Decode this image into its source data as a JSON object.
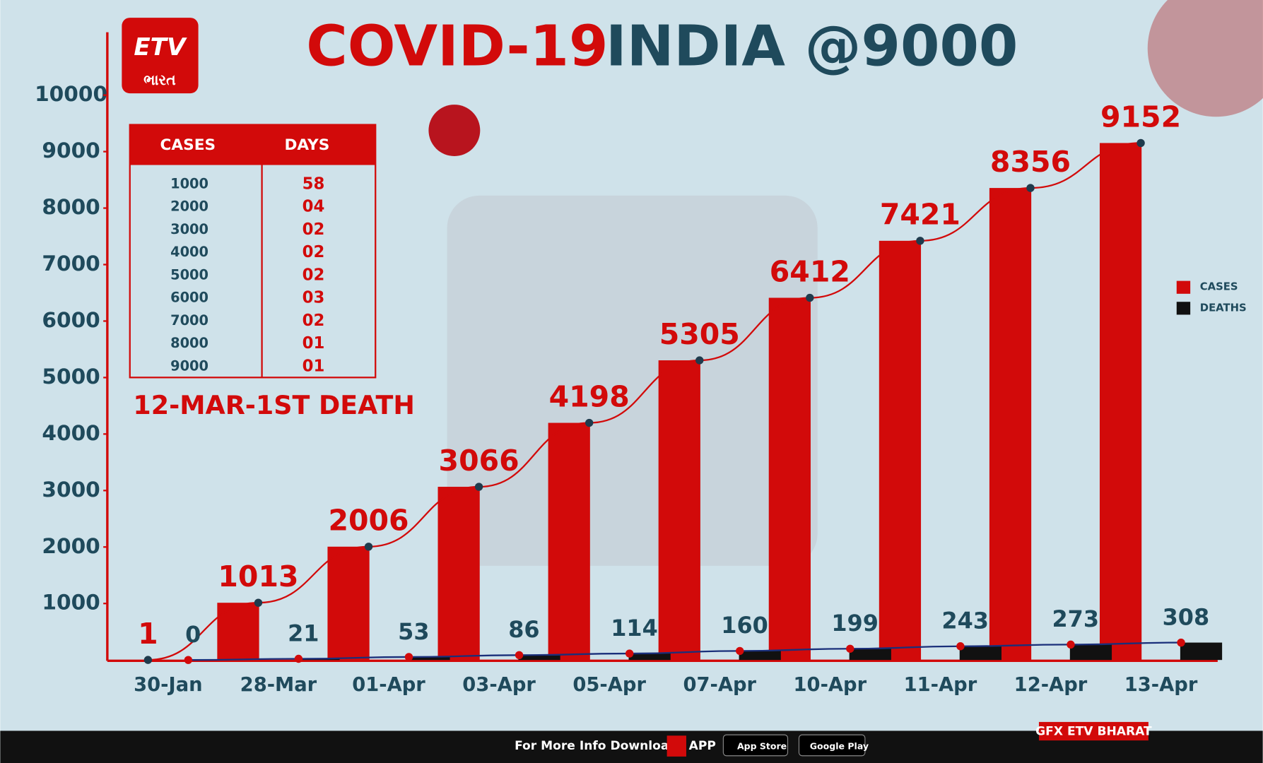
{
  "chart_data": {
    "type": "bar",
    "title": "COVID-19",
    "subtitle": "INDIA @9000",
    "annotation": "12-MAR-1ST DEATH",
    "categories": [
      "30-Jan",
      "28-Mar",
      "01-Apr",
      "03-Apr",
      "05-Apr",
      "07-Apr",
      "10-Apr",
      "11-Apr",
      "12-Apr",
      "13-Apr"
    ],
    "series": [
      {
        "name": "CASES",
        "color": "#d20a0a",
        "values": [
          1,
          1013,
          2006,
          3066,
          4198,
          5305,
          6412,
          7421,
          8356,
          9152
        ]
      },
      {
        "name": "DEATHS",
        "color": "#111111",
        "values": [
          0,
          21,
          53,
          86,
          114,
          160,
          199,
          243,
          273,
          308
        ]
      }
    ],
    "ylim": [
      0,
      11000
    ],
    "yticks": [
      1000,
      2000,
      3000,
      4000,
      5000,
      6000,
      7000,
      8000,
      9000,
      10000
    ],
    "legend": "right"
  },
  "table": {
    "header": [
      "CASES",
      "DAYS"
    ],
    "rows": [
      [
        "1000",
        "58"
      ],
      [
        "2000",
        "04"
      ],
      [
        "3000",
        "02"
      ],
      [
        "4000",
        "02"
      ],
      [
        "5000",
        "02"
      ],
      [
        "6000",
        "03"
      ],
      [
        "7000",
        "02"
      ],
      [
        "8000",
        "01"
      ],
      [
        "9000",
        "01"
      ]
    ]
  },
  "logo": {
    "name": "ETV",
    "script": "ભારત"
  },
  "footer": {
    "text": "For More Info Download",
    "app": "APP",
    "store1": "App Store",
    "store2": "Google Play",
    "credit": "GFX ETV BHARAT"
  }
}
